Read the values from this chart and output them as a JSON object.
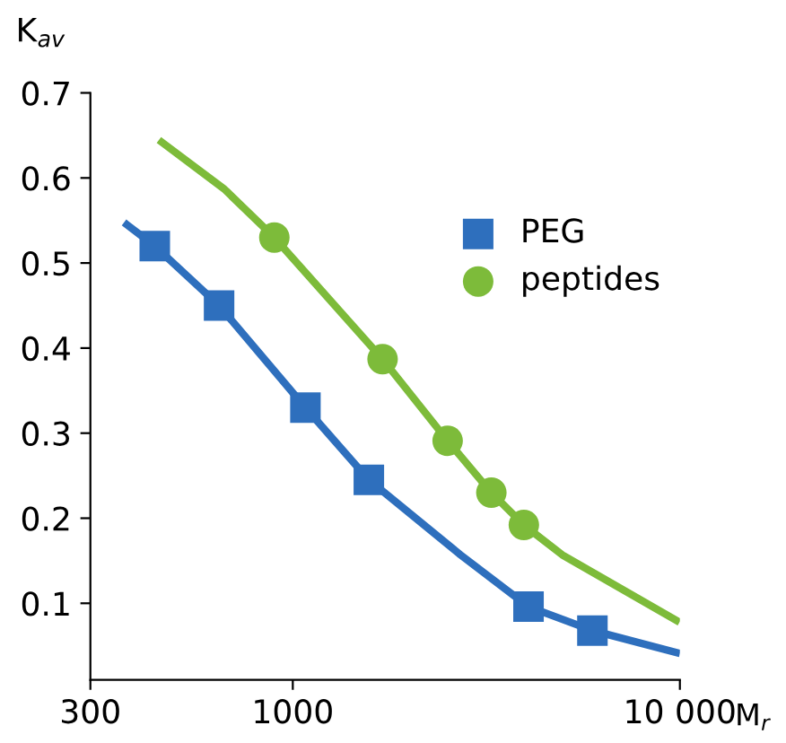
{
  "chart_data": {
    "type": "scatter",
    "log": "x",
    "xlabel": "M$_{r}$",
    "ylabel": "K$_{av}$",
    "xlim": [
      300,
      10000
    ],
    "xticks": [
      300,
      1000,
      {
        "value": 10000,
        "label": "10 000"
      }
    ],
    "ylim": [
      0.01,
      0.7
    ],
    "yticks": [
      0.1,
      0.2,
      0.3,
      0.4,
      0.5,
      0.6,
      0.7
    ],
    "grid": false,
    "legend": "right",
    "series": [
      {
        "type": "line",
        "color": "#2e6fbd",
        "x": [
          373,
          440,
          645,
          1078,
          1572,
          2710,
          4064,
          5943,
          9790
        ],
        "values": [
          0.545,
          0.52,
          0.45,
          0.33,
          0.245,
          0.157,
          0.096,
          0.068,
          0.042
        ]
      },
      {
        "type": "line",
        "color": "#7dbb3a",
        "x": [
          459,
          665,
          896,
          1706,
          2512,
          3258,
          3953,
          4966,
          9790
        ],
        "values": [
          0.642,
          0.587,
          0.53,
          0.387,
          0.291,
          0.23,
          0.192,
          0.157,
          0.08
        ]
      },
      {
        "name": "PEG",
        "marker": "square",
        "color": "#2e6fbd",
        "x": [
          440,
          645,
          1078,
          1572,
          4064,
          5943
        ],
        "values": [
          0.52,
          0.45,
          0.33,
          0.245,
          0.096,
          0.068
        ]
      },
      {
        "name": "peptides",
        "marker": "circle",
        "color": "#7dbb3a",
        "x": [
          896,
          1706,
          2512,
          3258,
          3953
        ],
        "values": [
          0.53,
          0.387,
          0.291,
          0.23,
          0.192
        ]
      }
    ]
  }
}
